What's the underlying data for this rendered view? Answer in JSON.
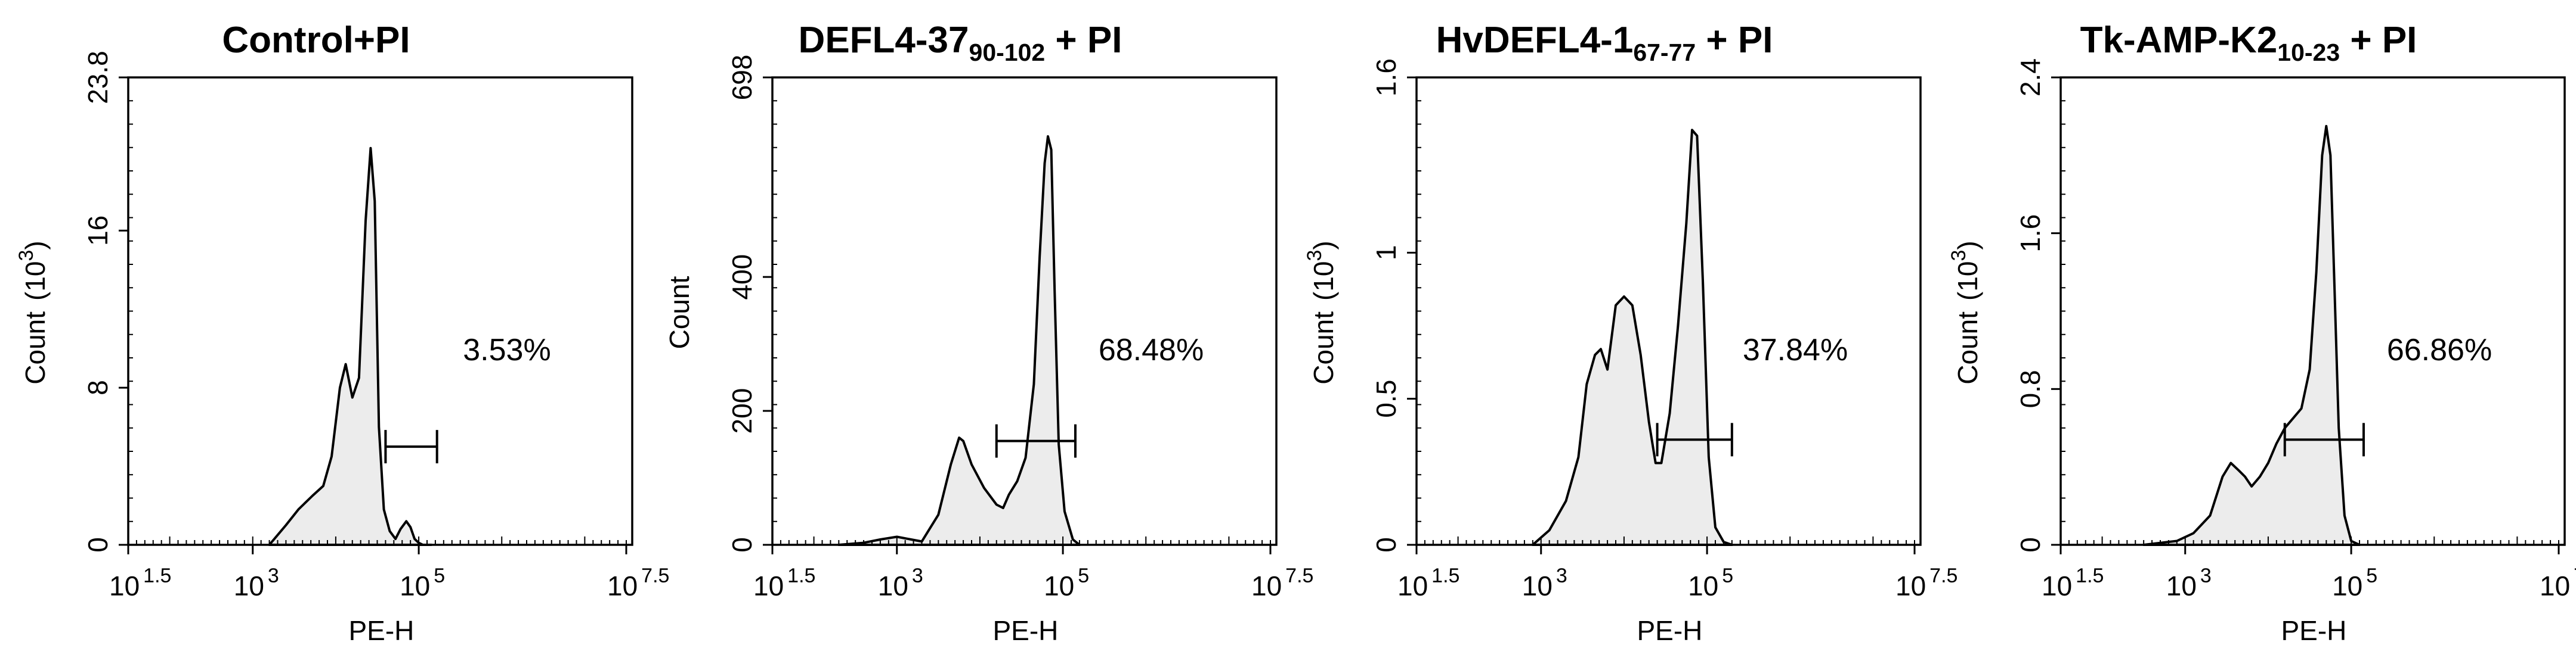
{
  "chart_data": [
    {
      "type": "histogram",
      "title": "Control+PI",
      "title_main": "Control+PI",
      "title_sub": "",
      "title_tail": "",
      "xlabel": "PE-H",
      "ylabel": "Count",
      "ylabel_unit": "(10",
      "ylabel_unit_exp": "3",
      "ylabel_unit_close": ")",
      "xscale": "log10",
      "xlim": [
        1.5,
        7.5
      ],
      "ylim": [
        0,
        23.8
      ],
      "yticks": [
        0,
        8,
        16,
        23.8
      ],
      "ytick_labels": [
        "0",
        "8",
        "16",
        "23.8"
      ],
      "gate_percent": "3.53%",
      "gate_range_log10": [
        4.6,
        5.22
      ],
      "gate_y": 5.0,
      "histogram": {
        "x_log10": [
          3.2,
          3.4,
          3.55,
          3.72,
          3.85,
          3.95,
          4.05,
          4.12,
          4.2,
          4.28,
          4.36,
          4.42,
          4.47,
          4.52,
          4.58,
          4.65,
          4.72,
          4.78,
          4.85,
          4.9,
          4.95,
          5.0,
          5.05,
          5.15
        ],
        "y": [
          0,
          1.0,
          1.8,
          2.5,
          3.0,
          4.5,
          8.0,
          9.2,
          7.5,
          8.5,
          16.5,
          20.2,
          17.5,
          6.0,
          1.8,
          0.7,
          0.3,
          0.8,
          1.2,
          0.9,
          0.3,
          0.1,
          0,
          0
        ]
      }
    },
    {
      "type": "histogram",
      "title": "DEFL4-37 90-102 + PI",
      "title_main": "DEFL4-37",
      "title_sub": "90-102",
      "title_tail": " + PI",
      "xlabel": "PE-H",
      "ylabel": "Count",
      "ylabel_unit": "",
      "ylabel_unit_exp": "",
      "ylabel_unit_close": "",
      "xscale": "log10",
      "xlim": [
        1.5,
        7.5
      ],
      "ylim": [
        0,
        698
      ],
      "yticks": [
        0,
        200,
        400,
        698
      ],
      "ytick_labels": [
        "0",
        "200",
        "400",
        "698"
      ],
      "gate_percent": "68.48%",
      "gate_range_log10": [
        4.2,
        5.15
      ],
      "gate_y": 155,
      "histogram": {
        "x_log10": [
          2.3,
          2.6,
          2.8,
          3.0,
          3.3,
          3.5,
          3.65,
          3.75,
          3.8,
          3.9,
          4.05,
          4.2,
          4.28,
          4.35,
          4.45,
          4.55,
          4.65,
          4.72,
          4.78,
          4.82,
          4.86,
          4.9,
          4.95,
          5.02,
          5.12,
          5.2
        ],
        "y": [
          0,
          3,
          8,
          12,
          5,
          45,
          120,
          160,
          155,
          120,
          85,
          60,
          55,
          75,
          95,
          130,
          240,
          430,
          570,
          610,
          590,
          380,
          150,
          50,
          8,
          0
        ]
      }
    },
    {
      "type": "histogram",
      "title": "HvDEFL4-1 67-77 + PI",
      "title_main": "HvDEFL4-1",
      "title_sub": "67-77",
      "title_tail": " + PI",
      "xlabel": "PE-H",
      "ylabel": "Count",
      "ylabel_unit": "(10",
      "ylabel_unit_exp": "3",
      "ylabel_unit_close": ")",
      "xscale": "log10",
      "xlim": [
        1.5,
        7.5
      ],
      "ylim": [
        0,
        1.6
      ],
      "yticks": [
        0,
        0.5,
        1,
        1.6
      ],
      "ytick_labels": [
        "0",
        "0.5",
        "1",
        "1.6"
      ],
      "gate_percent": "37.84%",
      "gate_range_log10": [
        4.4,
        5.3
      ],
      "gate_y": 0.36,
      "histogram": {
        "x_log10": [
          2.9,
          3.1,
          3.3,
          3.45,
          3.55,
          3.65,
          3.72,
          3.8,
          3.9,
          4.0,
          4.1,
          4.2,
          4.3,
          4.38,
          4.45,
          4.55,
          4.65,
          4.75,
          4.82,
          4.88,
          4.95,
          5.02,
          5.1,
          5.2,
          5.3
        ],
        "y": [
          0,
          0.05,
          0.15,
          0.3,
          0.55,
          0.65,
          0.67,
          0.6,
          0.82,
          0.85,
          0.82,
          0.65,
          0.42,
          0.28,
          0.28,
          0.45,
          0.75,
          1.1,
          1.42,
          1.4,
          0.9,
          0.3,
          0.06,
          0.01,
          0
        ]
      }
    },
    {
      "type": "histogram",
      "title": "Tk-AMP-K2 10-23 + PI",
      "title_main": "Tk-AMP-K2",
      "title_sub": "10-23",
      "title_tail": " + PI",
      "xlabel": "PE-H",
      "ylabel": "Count",
      "ylabel_unit": "(10",
      "ylabel_unit_exp": "3",
      "ylabel_unit_close": ")",
      "xscale": "log10",
      "xlim": [
        1.5,
        7.5
      ],
      "ylim": [
        0,
        2.4
      ],
      "yticks": [
        0,
        0.8,
        1.6,
        2.4
      ],
      "ytick_labels": [
        "0",
        "0.8",
        "1.6",
        "2.4"
      ],
      "gate_percent": "66.86%",
      "gate_range_log10": [
        4.2,
        5.15
      ],
      "gate_y": 0.54,
      "histogram": {
        "x_log10": [
          2.5,
          2.9,
          3.1,
          3.3,
          3.45,
          3.55,
          3.65,
          3.72,
          3.8,
          3.9,
          4.0,
          4.1,
          4.2,
          4.3,
          4.4,
          4.5,
          4.58,
          4.65,
          4.7,
          4.75,
          4.8,
          4.85,
          4.92,
          5.0,
          5.1
        ],
        "y": [
          0,
          0.02,
          0.06,
          0.15,
          0.35,
          0.42,
          0.38,
          0.35,
          0.3,
          0.35,
          0.42,
          0.52,
          0.6,
          0.65,
          0.7,
          0.9,
          1.4,
          2.0,
          2.15,
          2.0,
          1.3,
          0.6,
          0.15,
          0.02,
          0
        ]
      }
    }
  ],
  "x_axis": {
    "ticks": [
      {
        "log": 1.5,
        "base": "10",
        "exp": "1.5"
      },
      {
        "log": 3,
        "base": "10",
        "exp": "3"
      },
      {
        "log": 5,
        "base": "10",
        "exp": "5"
      },
      {
        "log": 7.5,
        "base": "10",
        "exp": "7.5"
      }
    ]
  },
  "colors": {
    "fill": "#ececec",
    "line": "#000000",
    "background": "#ffffff"
  }
}
